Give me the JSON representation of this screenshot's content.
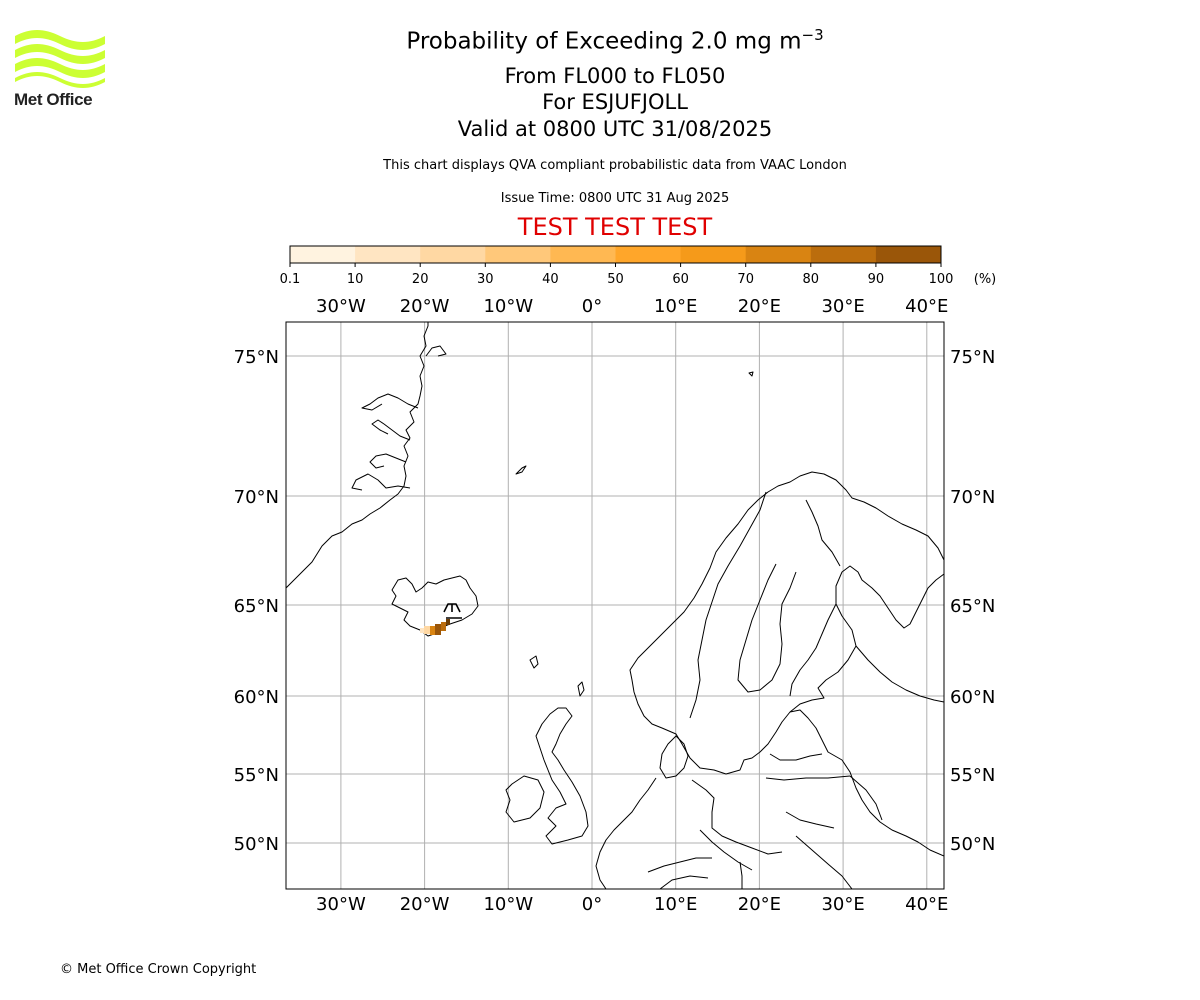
{
  "logo": {
    "name": "Met Office",
    "color": "#ccff33"
  },
  "header": {
    "title_prefix": "Probability of Exceeding 2.0 mg m",
    "title_exponent": "−3",
    "flight_levels": "From FL000 to FL050",
    "volcano": "For ESJUFJOLL",
    "valid": "Valid at 0800 UTC 31/08/2025",
    "description": "This chart displays QVA compliant probabilistic data from VAAC London",
    "issue_time": "Issue Time: 0800 UTC 31 Aug 2025",
    "test_banner": "TEST TEST TEST"
  },
  "colorbar": {
    "ticks": [
      "0.1",
      "10",
      "20",
      "30",
      "40",
      "50",
      "60",
      "70",
      "80",
      "90",
      "100"
    ],
    "unit": "(%)",
    "colors": [
      "#fff3e0",
      "#ffe5c2",
      "#ffd8a3",
      "#ffc87a",
      "#ffb852",
      "#ffa62a",
      "#f59a1a",
      "#d98412",
      "#bb6d0d",
      "#9a5609",
      "#6b3d07"
    ]
  },
  "map": {
    "lon_ticks": [
      -30,
      -20,
      -10,
      0,
      10,
      20,
      30,
      40
    ],
    "lon_labels": [
      "30°W",
      "20°W",
      "10°W",
      "0°",
      "10°E",
      "20°E",
      "30°E",
      "40°E"
    ],
    "lat_ticks": [
      75,
      70,
      65,
      60,
      55,
      50
    ],
    "lat_labels": [
      "75°N",
      "70°N",
      "65°N",
      "60°N",
      "55°N",
      "50°N"
    ],
    "grid_color": "#b0b0b0"
  },
  "footer": {
    "copyright": "© Met Office Crown Copyright"
  }
}
